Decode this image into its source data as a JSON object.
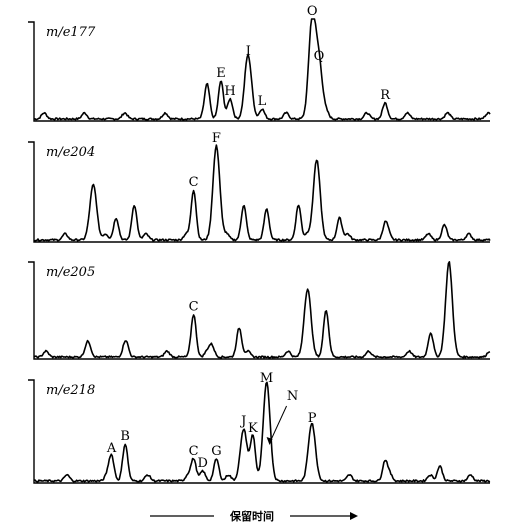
{
  "chart_data": {
    "type": "line",
    "xlabel": "保留时间",
    "x_direction_arrows": true,
    "grid": false,
    "legend": "none",
    "panels": [
      {
        "name": "m/e177",
        "peaks": [
          {
            "x": 0.38,
            "y": 0.3,
            "label": ""
          },
          {
            "x": 0.41,
            "y": 0.38,
            "label": "E"
          },
          {
            "x": 0.43,
            "y": 0.2,
            "label": "H"
          },
          {
            "x": 0.47,
            "y": 0.6,
            "label": "I"
          },
          {
            "x": 0.5,
            "y": 0.1,
            "label": "L"
          },
          {
            "x": 0.61,
            "y": 1.0,
            "label": "O"
          },
          {
            "x": 0.625,
            "y": 0.55,
            "label": "Q"
          },
          {
            "x": 0.77,
            "y": 0.16,
            "label": "R"
          }
        ]
      },
      {
        "name": "m/e204",
        "peaks": [
          {
            "x": 0.13,
            "y": 0.55,
            "label": ""
          },
          {
            "x": 0.18,
            "y": 0.22,
            "label": ""
          },
          {
            "x": 0.22,
            "y": 0.35,
            "label": ""
          },
          {
            "x": 0.35,
            "y": 0.5,
            "label": "C"
          },
          {
            "x": 0.4,
            "y": 0.94,
            "label": "F"
          },
          {
            "x": 0.46,
            "y": 0.35,
            "label": ""
          },
          {
            "x": 0.51,
            "y": 0.25,
            "label": ""
          },
          {
            "x": 0.58,
            "y": 0.35,
            "label": ""
          },
          {
            "x": 0.62,
            "y": 0.8,
            "label": ""
          },
          {
            "x": 0.67,
            "y": 0.22,
            "label": ""
          },
          {
            "x": 0.77,
            "y": 0.15,
            "label": ""
          },
          {
            "x": 0.9,
            "y": 0.15,
            "label": ""
          }
        ]
      },
      {
        "name": "m/e205",
        "peaks": [
          {
            "x": 0.12,
            "y": 0.12,
            "label": ""
          },
          {
            "x": 0.2,
            "y": 0.12,
            "label": ""
          },
          {
            "x": 0.35,
            "y": 0.44,
            "label": "C"
          },
          {
            "x": 0.39,
            "y": 0.12,
            "label": ""
          },
          {
            "x": 0.45,
            "y": 0.3,
            "label": ""
          },
          {
            "x": 0.6,
            "y": 0.7,
            "label": ""
          },
          {
            "x": 0.64,
            "y": 0.45,
            "label": ""
          },
          {
            "x": 0.87,
            "y": 0.25,
            "label": ""
          },
          {
            "x": 0.91,
            "y": 0.92,
            "label": ""
          }
        ]
      },
      {
        "name": "m/e218",
        "peaks": [
          {
            "x": 0.17,
            "y": 0.25,
            "label": "A"
          },
          {
            "x": 0.2,
            "y": 0.37,
            "label": "B"
          },
          {
            "x": 0.35,
            "y": 0.22,
            "label": "C"
          },
          {
            "x": 0.37,
            "y": 0.1,
            "label": "D"
          },
          {
            "x": 0.4,
            "y": 0.22,
            "label": "G"
          },
          {
            "x": 0.46,
            "y": 0.52,
            "label": "J"
          },
          {
            "x": 0.48,
            "y": 0.45,
            "label": "K"
          },
          {
            "x": 0.51,
            "y": 0.95,
            "label": "M"
          },
          {
            "x": 0.61,
            "y": 0.55,
            "label": "P"
          },
          {
            "x": 0.77,
            "y": 0.2,
            "label": ""
          },
          {
            "x": 0.89,
            "y": 0.15,
            "label": ""
          }
        ]
      }
    ],
    "annotations": [
      {
        "label": "N",
        "points_to": "M"
      }
    ]
  }
}
